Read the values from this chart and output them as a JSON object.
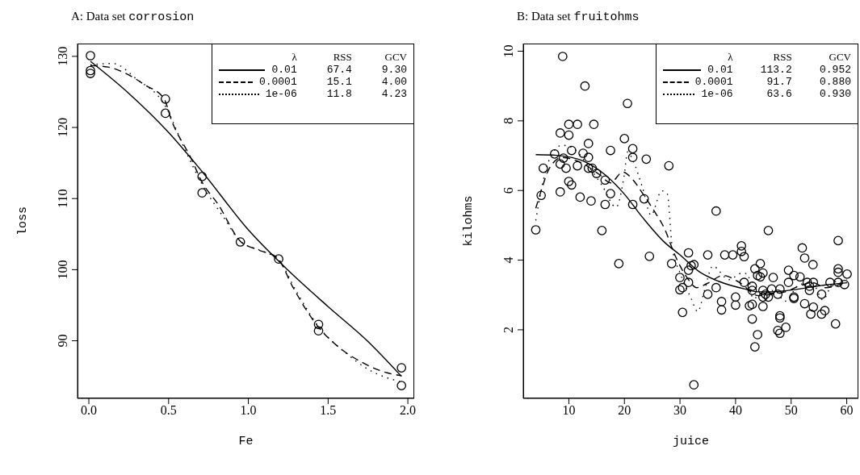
{
  "chart_data": [
    {
      "type": "scatter",
      "title": "A: Data set corrosion",
      "xlabel": "Fe",
      "ylabel": "loss",
      "legend": "top right",
      "xlim": [
        -0.071,
        2.04
      ],
      "ylim": [
        81.9,
        131.8
      ],
      "xticks": [
        {
          "value": 0,
          "label": "0.0"
        },
        {
          "value": 0.5,
          "label": "0.5"
        },
        {
          "value": 1,
          "label": "1.0"
        },
        {
          "value": 1.5,
          "label": "1.5"
        },
        {
          "value": 2,
          "label": "2.0"
        }
      ],
      "yticks": [
        90,
        100,
        110,
        120,
        130
      ],
      "annotations": [
        "λ",
        "RSS",
        "GCV",
        "67.4",
        "9.30",
        "15.1",
        "4.00",
        "11.8",
        "4.23"
      ],
      "series": [
        {
          "type": "scatter",
          "marker": "circle",
          "color": "#000000",
          "x": [
            0.01,
            0.48,
            0.71,
            0.95,
            1.19,
            0.01,
            0.48,
            1.44,
            0.71,
            1.96,
            0.01,
            1.44,
            1.96
          ],
          "values": [
            127.6,
            124.0,
            110.8,
            103.9,
            101.5,
            130.1,
            122.0,
            92.3,
            113.1,
            83.7,
            128.0,
            91.4,
            86.2
          ]
        },
        {
          "type": "line",
          "name": "0.01",
          "line_style": "solid",
          "marker": "none",
          "color": "#000000",
          "x": [
            0.01,
            0.25,
            0.5,
            0.71,
            1.0,
            1.25,
            1.5,
            1.75,
            1.96
          ],
          "values": [
            129.3,
            124.8,
            119.3,
            113.8,
            105.6,
            99.9,
            94.8,
            89.9,
            85.0
          ]
        },
        {
          "type": "line",
          "name": "0.0001",
          "line_style": "dashed",
          "marker": "none",
          "color": "#000000",
          "x": [
            0.01,
            0.12,
            0.24,
            0.35,
            0.47,
            0.52,
            0.64,
            0.71,
            0.81,
            0.95,
            1.06,
            1.18,
            1.28,
            1.37,
            1.44,
            1.54,
            1.71,
            1.87,
            1.96
          ],
          "values": [
            128.7,
            128.5,
            127.5,
            126.0,
            124.1,
            120.9,
            115.7,
            112.3,
            109.2,
            104.0,
            102.8,
            101.7,
            97.5,
            94.1,
            91.9,
            89.6,
            87.0,
            85.5,
            85.1
          ]
        },
        {
          "type": "line",
          "name": "1e-06",
          "line_style": "dotted",
          "marker": "none",
          "color": "#000000",
          "x": [
            0.01,
            0.15,
            0.3,
            0.48,
            0.6,
            0.71,
            0.85,
            0.95,
            1.1,
            1.19,
            1.3,
            1.44,
            1.6,
            1.75,
            1.96
          ],
          "values": [
            128.8,
            129.0,
            126.8,
            123.0,
            117.0,
            112.0,
            107.2,
            104.0,
            102.5,
            101.4,
            97.0,
            92.0,
            88.5,
            86.0,
            84.2
          ]
        }
      ]
    },
    {
      "type": "scatter",
      "title": "B: Data set fruitohms",
      "xlabel": "juice",
      "ylabel": "kilohms",
      "legend": "top right",
      "xlim": [
        1.8,
        62.1
      ],
      "ylim": [
        0.03,
        10.22
      ],
      "xticks": [
        10,
        20,
        30,
        40,
        50,
        60
      ],
      "yticks": [
        2,
        4,
        6,
        8,
        10
      ],
      "annotations": [
        "λ",
        "RSS",
        "GCV",
        "113.2",
        "0.952",
        "91.7",
        "0.880",
        "63.6",
        "0.930"
      ],
      "series": [
        {
          "type": "scatter",
          "marker": "circle",
          "color": "#000000",
          "x": [
            4.05,
            5.02,
            5.4,
            7.44,
            8.45,
            8.45,
            8.45,
            8.89,
            9.03,
            9.5,
            10.0,
            10.0,
            10.0,
            10.5,
            10.5,
            11.55,
            11.55,
            12.03,
            12.56,
            12.9,
            13.53,
            13.53,
            13.53,
            14.0,
            14.2,
            14.5,
            14.98,
            15.95,
            16.53,
            16.53,
            17.5,
            17.5,
            19.0,
            20.0,
            20.55,
            21.5,
            21.5,
            21.5,
            23.55,
            23.93,
            24.5,
            28.0,
            28.5,
            29.98,
            29.98,
            30.46,
            30.46,
            31.53,
            31.53,
            31.53,
            32.01,
            32.5,
            32.5,
            35.0,
            35.0,
            36.5,
            36.5,
            37.48,
            37.48,
            38.06,
            39.5,
            40.0,
            40.0,
            41.06,
            41.06,
            41.54,
            41.54,
            42.5,
            43.0,
            43.0,
            43.0,
            43.0,
            43.48,
            43.48,
            43.96,
            43.96,
            44.45,
            44.45,
            44.93,
            44.93,
            44.93,
            44.93,
            45.4,
            45.9,
            45.9,
            46.5,
            46.77,
            47.6,
            47.6,
            47.98,
            47.98,
            47.98,
            47.98,
            49.04,
            49.53,
            49.53,
            50.5,
            50.5,
            50.5,
            51.6,
            52.0,
            52.43,
            52.43,
            52.9,
            53.3,
            53.3,
            53.54,
            53.93,
            54.0,
            54.0,
            55.48,
            55.48,
            56.06,
            57.0,
            57.99,
            58.47,
            58.47,
            58.47,
            58.47,
            59.6,
            60.07
          ],
          "values": [
            4.87,
            5.86,
            6.64,
            7.05,
            7.65,
            5.96,
            6.76,
            9.85,
            6.93,
            6.64,
            7.9,
            7.59,
            6.26,
            7.15,
            6.16,
            7.9,
            6.71,
            5.81,
            7.07,
            9.0,
            7.35,
            6.95,
            6.64,
            5.7,
            6.64,
            7.9,
            6.49,
            4.85,
            6.3,
            5.6,
            7.15,
            5.91,
            3.9,
            7.49,
            8.5,
            7.2,
            6.95,
            5.6,
            5.76,
            6.9,
            4.11,
            6.71,
            3.9,
            3.5,
            3.15,
            3.21,
            2.5,
            4.21,
            3.71,
            3.36,
            3.84,
            3.87,
            0.42,
            4.15,
            3.02,
            5.41,
            3.21,
            2.81,
            2.57,
            4.15,
            4.15,
            2.94,
            2.71,
            4.41,
            4.25,
            4.1,
            3.36,
            2.69,
            2.73,
            3.25,
            3.13,
            2.31,
            3.75,
            1.51,
            3.56,
            1.86,
            3.9,
            3.52,
            3.63,
            2.67,
            2.94,
            3.13,
            3.02,
            4.85,
            2.94,
            3.17,
            3.5,
            3.02,
            1.98,
            3.17,
            2.4,
            2.34,
            1.9,
            2.07,
            3.71,
            3.36,
            2.94,
            2.9,
            3.56,
            3.52,
            4.35,
            4.06,
            2.75,
            3.36,
            3.25,
            3.13,
            2.45,
            3.87,
            3.36,
            2.65,
            3.02,
            2.45,
            2.55,
            3.36,
            2.17,
            4.56,
            3.75,
            3.65,
            3.36,
            3.3,
            3.6
          ]
        },
        {
          "type": "line",
          "name": "0.01",
          "line_style": "solid",
          "marker": "none",
          "color": "#000000",
          "x": [
            4.05,
            7.82,
            12.66,
            16.53,
            19.92,
            23.3,
            27.17,
            30.08,
            33.46,
            36.85,
            41.69,
            44.1,
            46.5,
            51.4,
            56.2,
            60.07
          ],
          "values": [
            7.03,
            7.01,
            6.84,
            6.45,
            5.91,
            5.22,
            4.52,
            4.14,
            3.67,
            3.4,
            3.17,
            3.09,
            3.09,
            3.17,
            3.29,
            3.35
          ]
        },
        {
          "type": "line",
          "name": "0.0001",
          "line_style": "dashed",
          "marker": "none",
          "color": "#000000",
          "x": [
            4.05,
            5.16,
            6.37,
            8.8,
            12.66,
            15.56,
            17.5,
            19.7,
            21.4,
            23.3,
            25.2,
            27.2,
            29.1,
            31.53,
            33.0,
            34.9,
            37.8,
            40.7,
            44.1,
            46.5,
            48.9,
            51.4,
            53.8,
            56.2,
            60.07
          ],
          "values": [
            5.49,
            6.06,
            6.6,
            6.95,
            6.76,
            6.45,
            6.22,
            6.53,
            6.33,
            5.91,
            5.45,
            4.91,
            4.14,
            3.44,
            3.21,
            3.33,
            3.56,
            3.36,
            2.98,
            3.02,
            3.09,
            3.25,
            3.36,
            3.21,
            3.4
          ]
        },
        {
          "type": "line",
          "name": "1e-06",
          "line_style": "dotted",
          "marker": "none",
          "color": "#000000",
          "x": [
            4.05,
            4.92,
            6.37,
            8.8,
            10.7,
            13.6,
            16.0,
            18.5,
            19.9,
            20.6,
            21.6,
            23.3,
            24.8,
            26.7,
            27.7,
            28.6,
            30.1,
            32.0,
            33.2,
            34.4,
            35.9,
            38.8,
            41.2,
            42.2,
            43.1,
            45.1,
            47.0,
            48.9,
            51.4,
            53.8,
            55.7,
            57.6,
            60.07
          ],
          "values": [
            5.14,
            5.91,
            6.84,
            7.3,
            7.22,
            6.68,
            6.14,
            5.52,
            6.37,
            7.11,
            6.84,
            6.06,
            5.29,
            5.99,
            5.91,
            4.37,
            3.6,
            2.9,
            2.52,
            3.13,
            3.83,
            3.44,
            3.63,
            3.6,
            2.9,
            3.05,
            3.13,
            2.82,
            3.29,
            3.36,
            2.86,
            3.36,
            3.44
          ]
        }
      ]
    }
  ]
}
